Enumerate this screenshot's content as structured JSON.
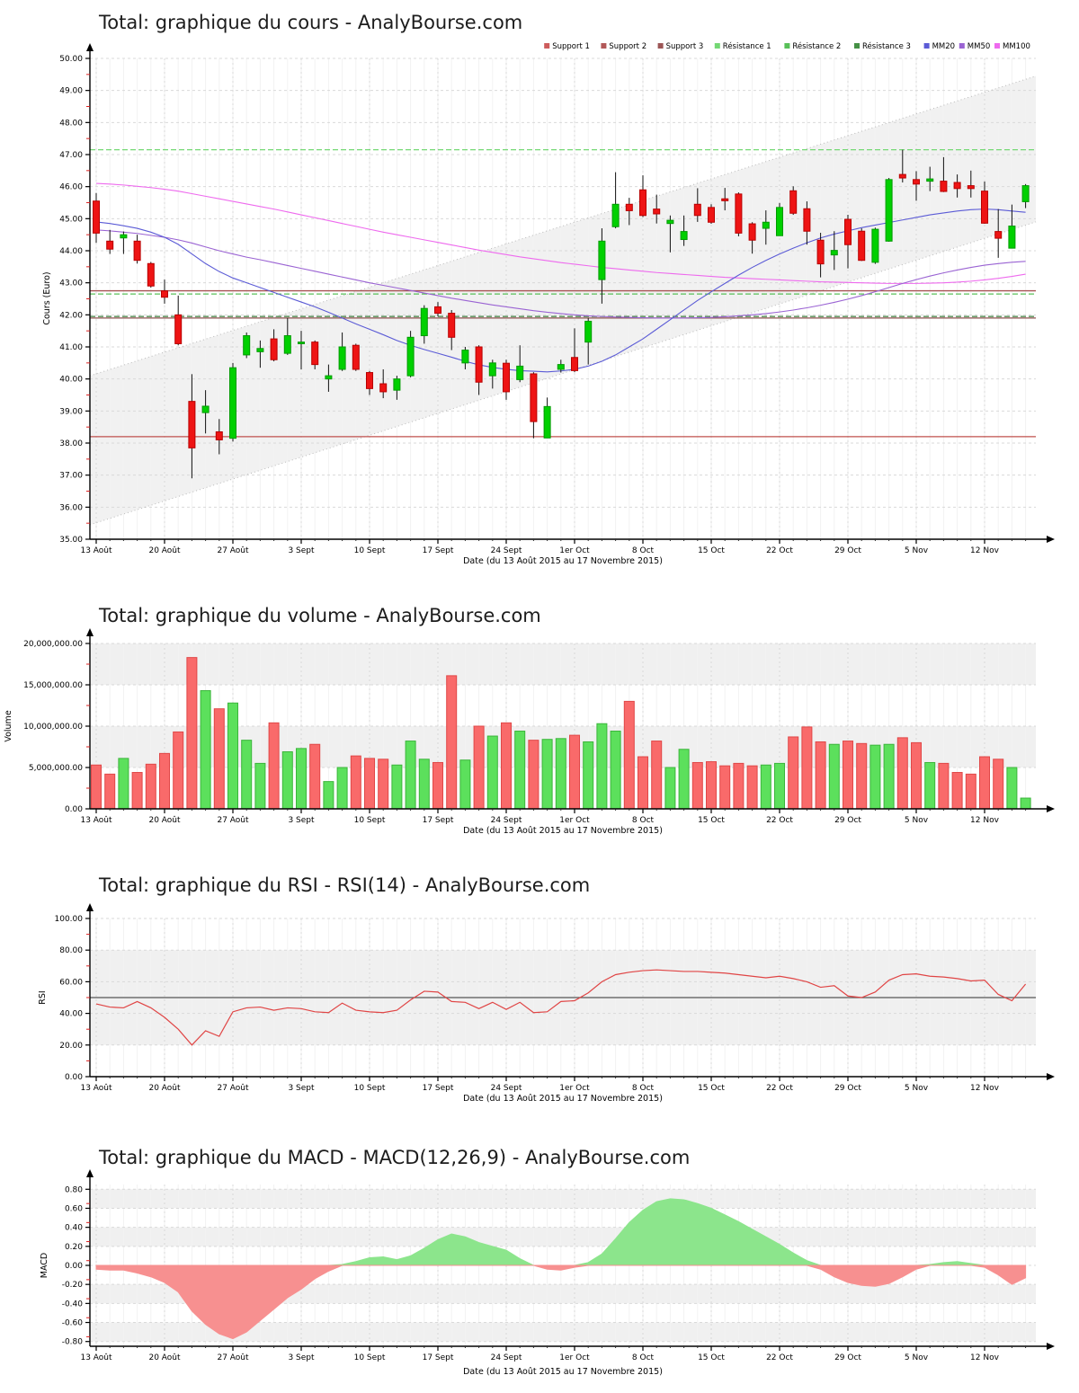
{
  "x_axis": {
    "bar_count": 69,
    "tick_labels": [
      "13 Août",
      "20 Août",
      "27 Août",
      "3 Sept",
      "10 Sept",
      "17 Sept",
      "24 Sept",
      "1er Oct",
      "8 Oct",
      "15 Oct",
      "22 Oct",
      "29 Oct",
      "5 Nov",
      "12 Nov"
    ],
    "tick_positions": [
      0,
      5,
      10,
      15,
      20,
      25,
      30,
      35,
      40,
      45,
      50,
      55,
      60,
      65
    ]
  },
  "legend": [
    {
      "label": "Support 1",
      "color": "#cd5c5c"
    },
    {
      "label": "Support 2",
      "color": "#b25858"
    },
    {
      "label": "Support 3",
      "color": "#9c5656"
    },
    {
      "label": "Résistance 1",
      "color": "#74d874"
    },
    {
      "label": "Résistance 2",
      "color": "#58c058"
    },
    {
      "label": "Résistance 3",
      "color": "#459045"
    },
    {
      "label": "MM20",
      "color": "#5b5bd6"
    },
    {
      "label": "MM50",
      "color": "#9a63d3"
    },
    {
      "label": "MM100",
      "color": "#ee6aee"
    }
  ],
  "colors": {
    "candle_up": "#00d000",
    "candle_up_border": "#009a00",
    "candle_down": "#ee1414",
    "candle_down_border": "#b80000",
    "vol_up": "#5ce05c",
    "vol_up_border": "#3bb53b",
    "vol_down": "#f96a6a",
    "vol_down_border": "#e04848",
    "macd_pos": "#8ce58c",
    "macd_neg": "#f79090",
    "rsi_line": "#e04545",
    "mid_line": "#555555",
    "mm20": "#5b5bd6",
    "mm50": "#9a63d3",
    "mm100": "#ee6aee",
    "support": [
      "#c0504d",
      "#a65353",
      "#8e5450"
    ],
    "resistance": [
      "#74d874",
      "#58c058",
      "#3f7f3f"
    ],
    "grid": "#d9d9d9",
    "minor_grid": "#f2f2f2",
    "band": "#f0f0f0",
    "channel_fill": "#ededed",
    "channel_line": "#b9b9b9",
    "minor_tick": "#dd2222"
  },
  "chart_data": [
    {
      "type": "candlestick",
      "title": "Total: graphique du cours - AnalyBourse.com",
      "ylabel": "Cours (Euro)",
      "xlabel": "Date (du 13 Août 2015 au 17 Novembre 2015)",
      "ylim": [
        35,
        50
      ],
      "y_tick_labels": [
        "35.00",
        "36.00",
        "37.00",
        "38.00",
        "39.00",
        "40.00",
        "41.00",
        "42.00",
        "43.00",
        "44.00",
        "45.00",
        "46.00",
        "47.00",
        "48.00",
        "49.00",
        "50.00"
      ],
      "candles": [
        [
          45.55,
          45.8,
          44.25,
          44.55
        ],
        [
          44.3,
          44.65,
          43.9,
          44.05
        ],
        [
          44.4,
          44.6,
          43.9,
          44.5
        ],
        [
          44.3,
          44.5,
          43.6,
          43.7
        ],
        [
          43.6,
          43.65,
          42.85,
          42.9
        ],
        [
          42.75,
          43.1,
          42.35,
          42.55
        ],
        [
          42.0,
          42.6,
          41.05,
          41.1
        ],
        [
          39.3,
          40.15,
          36.9,
          37.85
        ],
        [
          38.95,
          39.65,
          38.3,
          39.15
        ],
        [
          38.35,
          38.75,
          37.65,
          38.1
        ],
        [
          38.15,
          40.5,
          38.05,
          40.35
        ],
        [
          40.75,
          41.45,
          40.65,
          41.35
        ],
        [
          40.85,
          41.2,
          40.35,
          40.95
        ],
        [
          41.25,
          41.55,
          40.55,
          40.6
        ],
        [
          40.8,
          41.9,
          40.75,
          41.35
        ],
        [
          41.1,
          41.5,
          40.3,
          41.15
        ],
        [
          41.15,
          41.2,
          40.3,
          40.45
        ],
        [
          40.0,
          40.45,
          39.6,
          40.1
        ],
        [
          40.3,
          41.45,
          40.25,
          41.0
        ],
        [
          41.05,
          41.1,
          40.25,
          40.3
        ],
        [
          40.2,
          40.25,
          39.5,
          39.7
        ],
        [
          39.85,
          40.3,
          39.4,
          39.6
        ],
        [
          39.65,
          40.1,
          39.35,
          40.0
        ],
        [
          40.1,
          41.5,
          40.05,
          41.3
        ],
        [
          41.35,
          42.3,
          41.1,
          42.2
        ],
        [
          42.25,
          42.4,
          41.95,
          42.05
        ],
        [
          42.05,
          42.15,
          40.9,
          41.3
        ],
        [
          40.5,
          41.0,
          40.3,
          40.9
        ],
        [
          41.0,
          41.05,
          39.5,
          39.9
        ],
        [
          40.1,
          40.6,
          39.7,
          40.5
        ],
        [
          40.49,
          40.6,
          39.35,
          39.6
        ],
        [
          39.98,
          41.05,
          39.9,
          40.4
        ],
        [
          40.16,
          40.21,
          38.15,
          38.67
        ],
        [
          38.16,
          39.42,
          38.16,
          39.14
        ],
        [
          40.3,
          40.6,
          40.2,
          40.45
        ],
        [
          40.67,
          41.58,
          40.21,
          40.26
        ],
        [
          41.15,
          41.9,
          40.45,
          41.8
        ],
        [
          43.1,
          44.7,
          42.35,
          44.3
        ],
        [
          44.75,
          46.45,
          44.7,
          45.45
        ],
        [
          45.45,
          45.65,
          44.8,
          45.25
        ],
        [
          45.9,
          46.35,
          45.05,
          45.1
        ],
        [
          45.3,
          45.75,
          44.85,
          45.15
        ],
        [
          44.85,
          45.1,
          43.95,
          44.95
        ],
        [
          44.35,
          45.1,
          44.15,
          44.6
        ],
        [
          45.45,
          45.95,
          44.9,
          45.1
        ],
        [
          45.35,
          45.45,
          44.84,
          44.89
        ],
        [
          45.62,
          45.96,
          45.26,
          45.56
        ],
        [
          45.77,
          45.82,
          44.45,
          44.55
        ],
        [
          44.84,
          44.89,
          43.91,
          44.33
        ],
        [
          44.7,
          45.26,
          44.19,
          44.89
        ],
        [
          44.47,
          45.49,
          44.47,
          45.35
        ],
        [
          45.87,
          46.01,
          45.12,
          45.17
        ],
        [
          45.31,
          45.54,
          44.19,
          44.61
        ],
        [
          44.33,
          44.56,
          43.17,
          43.59
        ],
        [
          43.87,
          44.61,
          43.4,
          44.01
        ],
        [
          44.98,
          45.12,
          43.45,
          44.19
        ],
        [
          44.61,
          44.7,
          43.68,
          43.7
        ],
        [
          43.64,
          44.72,
          43.59,
          44.67
        ],
        [
          44.3,
          46.27,
          44.28,
          46.22
        ],
        [
          46.38,
          47.15,
          46.13,
          46.27
        ],
        [
          46.22,
          46.48,
          45.56,
          46.08
        ],
        [
          46.17,
          46.62,
          45.86,
          46.24
        ],
        [
          46.17,
          46.92,
          45.83,
          45.85
        ],
        [
          46.13,
          46.38,
          45.66,
          45.94
        ],
        [
          46.03,
          46.5,
          45.66,
          45.94
        ],
        [
          45.86,
          46.16,
          44.84,
          44.86
        ],
        [
          44.6,
          45.3,
          43.78,
          44.39
        ],
        [
          44.08,
          45.44,
          44.08,
          44.77
        ],
        [
          45.53,
          46.08,
          45.33,
          46.03
        ]
      ],
      "mm20": [
        44.9,
        44.85,
        44.78,
        44.7,
        44.58,
        44.42,
        44.2,
        43.9,
        43.6,
        43.35,
        43.15,
        43.0,
        42.85,
        42.7,
        42.55,
        42.4,
        42.25,
        42.08,
        41.9,
        41.72,
        41.55,
        41.38,
        41.2,
        41.05,
        40.92,
        40.8,
        40.68,
        40.55,
        40.44,
        40.36,
        40.3,
        40.26,
        40.24,
        40.22,
        40.25,
        40.3,
        40.4,
        40.55,
        40.75,
        41.0,
        41.25,
        41.55,
        41.85,
        42.15,
        42.45,
        42.72,
        42.98,
        43.24,
        43.48,
        43.7,
        43.9,
        44.08,
        44.25,
        44.4,
        44.52,
        44.62,
        44.72,
        44.8,
        44.88,
        44.96,
        45.04,
        45.12,
        45.18,
        45.24,
        45.28,
        45.3,
        45.28,
        45.24,
        45.2
      ],
      "mm50": [
        44.65,
        44.62,
        44.58,
        44.54,
        44.48,
        44.42,
        44.34,
        44.24,
        44.12,
        44.0,
        43.9,
        43.8,
        43.72,
        43.63,
        43.54,
        43.45,
        43.36,
        43.27,
        43.18,
        43.09,
        43.0,
        42.92,
        42.84,
        42.76,
        42.68,
        42.6,
        42.52,
        42.45,
        42.38,
        42.31,
        42.25,
        42.19,
        42.13,
        42.08,
        42.04,
        42.0,
        41.97,
        41.95,
        41.93,
        41.92,
        41.91,
        41.9,
        41.9,
        41.9,
        41.91,
        41.92,
        41.94,
        41.97,
        42.0,
        42.04,
        42.09,
        42.15,
        42.22,
        42.3,
        42.39,
        42.49,
        42.6,
        42.72,
        42.85,
        42.98,
        43.1,
        43.21,
        43.31,
        43.4,
        43.48,
        43.55,
        43.6,
        43.64,
        43.67
      ],
      "mm100": [
        46.1,
        46.08,
        46.05,
        46.01,
        45.97,
        45.92,
        45.86,
        45.78,
        45.7,
        45.62,
        45.54,
        45.46,
        45.38,
        45.3,
        45.21,
        45.12,
        45.03,
        44.94,
        44.85,
        44.76,
        44.67,
        44.58,
        44.5,
        44.42,
        44.34,
        44.26,
        44.18,
        44.1,
        44.02,
        43.95,
        43.88,
        43.81,
        43.75,
        43.69,
        43.63,
        43.58,
        43.53,
        43.48,
        43.44,
        43.4,
        43.36,
        43.32,
        43.29,
        43.26,
        43.23,
        43.2,
        43.17,
        43.15,
        43.13,
        43.11,
        43.09,
        43.07,
        43.05,
        43.03,
        43.02,
        43.01,
        43.0,
        42.99,
        42.98,
        42.98,
        42.98,
        42.99,
        43.0,
        43.02,
        43.05,
        43.09,
        43.14,
        43.2,
        43.27
      ],
      "supports": [
        {
          "name": "Support 1",
          "value": 38.2
        },
        {
          "name": "Support 2",
          "value": 42.75
        },
        {
          "name": "Support 3",
          "value": 41.9
        }
      ],
      "resistances": [
        {
          "name": "Résistance 1",
          "value": 47.15
        },
        {
          "name": "Résistance 2",
          "value": 42.65
        },
        {
          "name": "Résistance 3",
          "value": 41.95
        }
      ],
      "channel": {
        "lower": [
          35.45,
          44.9
        ],
        "upper": [
          40.1,
          49.45
        ]
      }
    },
    {
      "type": "bar",
      "title": "Total: graphique du volume - AnalyBourse.com",
      "ylabel": "Volume",
      "xlabel": "Date (du 13 Août 2015 au 17 Novembre 2015)",
      "ylim": [
        0,
        20000000
      ],
      "y_tick_labels": [
        "0.00",
        "5,000,000.00",
        "10,000,000.00",
        "15,000,000.00",
        "20,000,000.00"
      ],
      "values": [
        5300000,
        4200000,
        6100000,
        4400000,
        5400000,
        6700000,
        9300000,
        18300000,
        14300000,
        12100000,
        12800000,
        8300000,
        5500000,
        10400000,
        6900000,
        7300000,
        7800000,
        3300000,
        5000000,
        6400000,
        6100000,
        6000000,
        5300000,
        8200000,
        6000000,
        5600000,
        16100000,
        5900000,
        10000000,
        8800000,
        10400000,
        9400000,
        8300000,
        8400000,
        8500000,
        8900000,
        8100000,
        10300000,
        9400000,
        13000000,
        6300000,
        8200000,
        5000000,
        7200000,
        5600000,
        5700000,
        5200000,
        5500000,
        5200000,
        5300000,
        5500000,
        8700000,
        9900000,
        8100000,
        7800000,
        8200000,
        7900000,
        7700000,
        7800000,
        8600000,
        8000000,
        5600000,
        5500000,
        4400000,
        4200000,
        6300000,
        6000000,
        5000000,
        1300000
      ]
    },
    {
      "type": "line",
      "title": "Total: graphique du RSI - RSI(14) - AnalyBourse.com",
      "ylabel": "RSI",
      "xlabel": "Date (du 13 Août 2015 au 17 Novembre 2015)",
      "ylim": [
        0,
        100
      ],
      "y_tick_labels": [
        "0.00",
        "20.00",
        "40.00",
        "60.00",
        "80.00",
        "100.00"
      ],
      "mid_value": 50,
      "band": [
        20,
        80
      ],
      "values": [
        46,
        44,
        43.5,
        47.5,
        43.5,
        37.5,
        30,
        20,
        29,
        25.5,
        41,
        43.5,
        44,
        42,
        43.5,
        43,
        41,
        40.5,
        46.5,
        42,
        41,
        40.5,
        42,
        48.5,
        54,
        53.5,
        47.5,
        47,
        43,
        47,
        42.5,
        47,
        40.5,
        41,
        47.5,
        48,
        53,
        60,
        64.5,
        66,
        67,
        67.5,
        67,
        66.5,
        66.5,
        66,
        65.5,
        64.5,
        63.5,
        62.5,
        63.5,
        62,
        60,
        56.5,
        57.5,
        51,
        50,
        53.5,
        61,
        64.5,
        65,
        63.5,
        63,
        62,
        60.5,
        61,
        52,
        48,
        58.5
      ]
    },
    {
      "type": "area",
      "title": "Total: graphique du MACD - MACD(12,26,9) - AnalyBourse.com",
      "ylabel": "MACD",
      "xlabel": "Date (du 13 Août 2015 au 17 Novembre 2015)",
      "ylim": [
        -0.85,
        0.85
      ],
      "y_ticks": [
        -0.8,
        -0.6,
        -0.4,
        -0.2,
        0,
        0.2,
        0.4,
        0.6,
        0.8
      ],
      "y_tick_labels": [
        "-0.80",
        "-0.60",
        "-0.40",
        "-0.20",
        "0.00",
        "0.20",
        "0.40",
        "0.60",
        "0.80"
      ],
      "values": [
        -0.04,
        -0.05,
        -0.05,
        -0.08,
        -0.12,
        -0.18,
        -0.28,
        -0.48,
        -0.62,
        -0.72,
        -0.77,
        -0.7,
        -0.58,
        -0.46,
        -0.34,
        -0.25,
        -0.14,
        -0.06,
        0.01,
        0.04,
        0.08,
        0.09,
        0.06,
        0.1,
        0.18,
        0.27,
        0.33,
        0.3,
        0.24,
        0.2,
        0.16,
        0.07,
        0.0,
        -0.04,
        -0.05,
        -0.02,
        0.03,
        0.12,
        0.28,
        0.45,
        0.58,
        0.67,
        0.7,
        0.69,
        0.65,
        0.6,
        0.53,
        0.46,
        0.38,
        0.3,
        0.22,
        0.13,
        0.05,
        -0.04,
        -0.12,
        -0.18,
        -0.21,
        -0.22,
        -0.19,
        -0.12,
        -0.04,
        0.01,
        0.03,
        0.04,
        0.02,
        -0.02,
        -0.1,
        -0.2,
        -0.13
      ]
    }
  ]
}
